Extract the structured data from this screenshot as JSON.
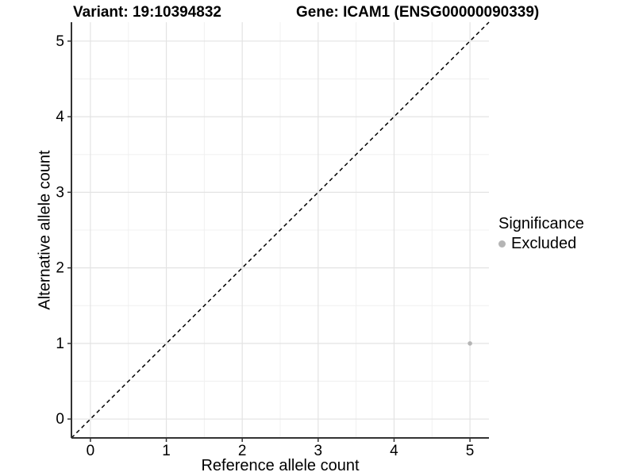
{
  "chart_data": {
    "type": "scatter",
    "title_left": "Variant: 19:10394832",
    "title_right": "Gene: ICAM1 (ENSG00000090339)",
    "xlabel": "Reference allele count",
    "ylabel": "Alternative allele count",
    "xlim": [
      -0.25,
      5.25
    ],
    "ylim": [
      -0.25,
      5.25
    ],
    "xticks": [
      0,
      1,
      2,
      3,
      4,
      5
    ],
    "yticks": [
      0,
      1,
      2,
      3,
      4,
      5
    ],
    "minor_ticks_x": [
      0.5,
      1.5,
      2.5,
      3.5,
      4.5
    ],
    "minor_ticks_y": [
      0.5,
      1.5,
      2.5,
      3.5,
      4.5
    ],
    "grid": "major+minor",
    "reference_line": {
      "kind": "identity",
      "dashed": true,
      "color": "#000000"
    },
    "series": [
      {
        "name": "Excluded",
        "color": "#b5b5b5",
        "points": [
          [
            5,
            1
          ]
        ]
      }
    ],
    "legend": {
      "title": "Significance",
      "position": "right",
      "items": [
        {
          "label": "Excluded",
          "color": "#b5b5b5"
        }
      ]
    }
  },
  "colors": {
    "background": "#ffffff",
    "grid_major": "#e3e3e3",
    "grid_minor": "#f0f0f0",
    "axis_line": "#333333",
    "text": "#000000"
  }
}
